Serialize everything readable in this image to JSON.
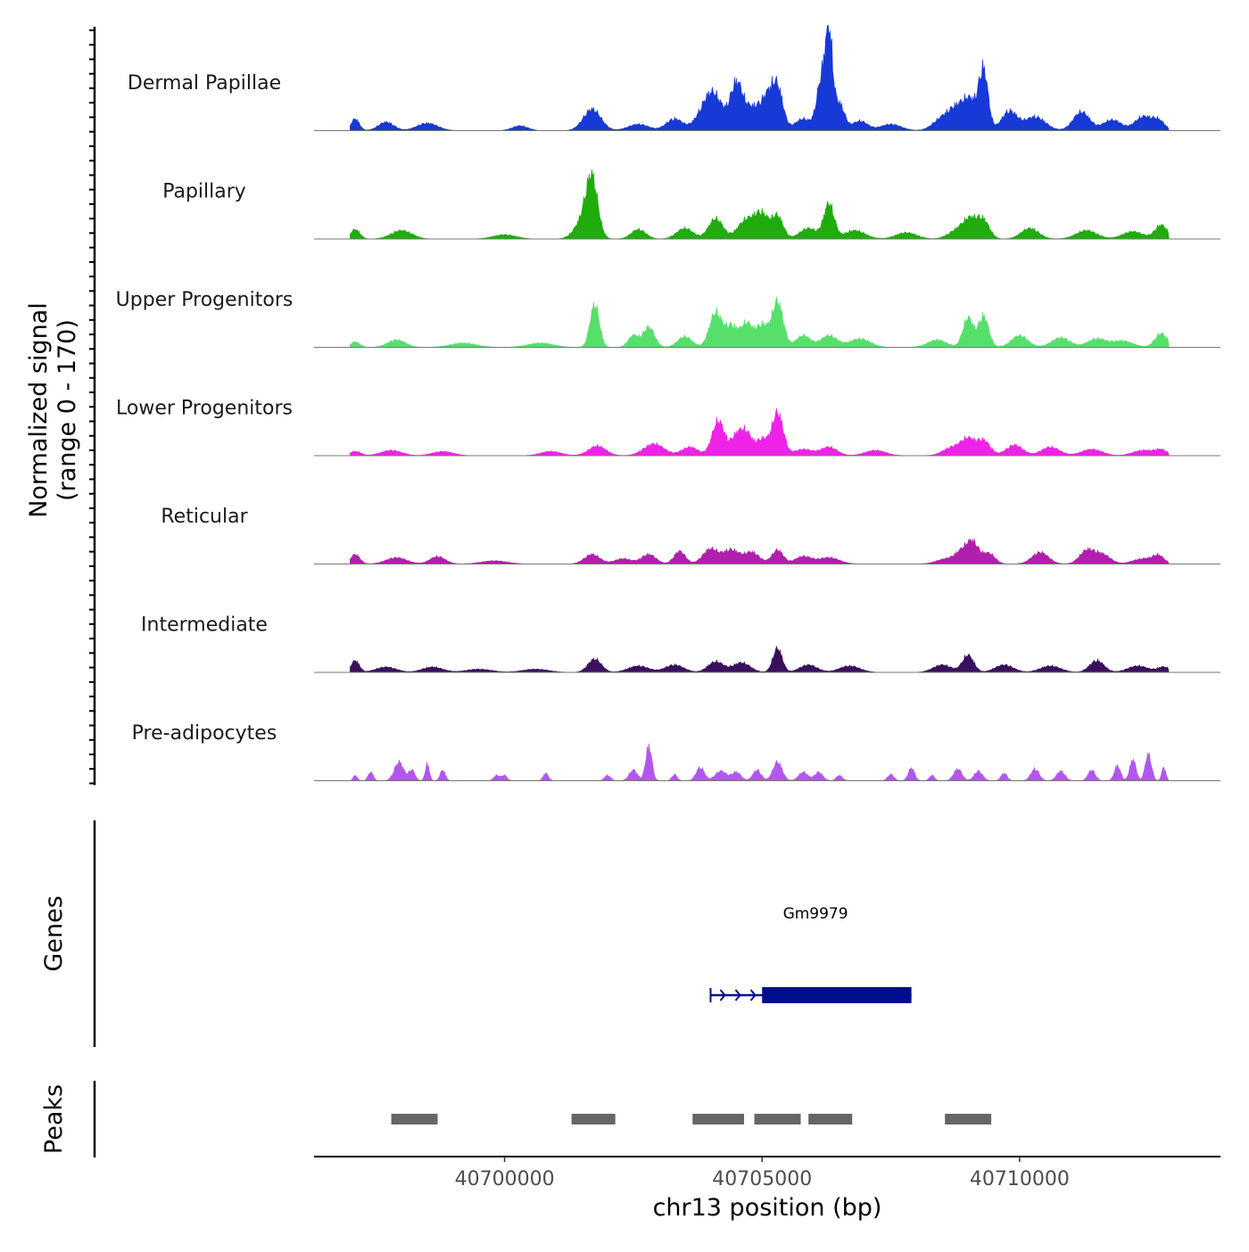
{
  "chart_data": {
    "type": "area",
    "chromosome": "chr13",
    "region_start": 40696300,
    "region_end": 40713900,
    "data_start": 40697000,
    "data_end": 40712900,
    "xlabel": "chr13 position (bp)",
    "x_ticks": [
      {
        "value": 40700000,
        "label": "40700000"
      },
      {
        "value": 40705000,
        "label": "40705000"
      },
      {
        "value": 40710000,
        "label": "40710000"
      }
    ],
    "signal_axis": {
      "title": "Normalized signal",
      "subtitle": "(range 0 - 170)",
      "ylim": [
        0,
        170
      ]
    },
    "tracks": [
      {
        "name": "Dermal Papillae",
        "color": "#1739d6",
        "peaks": [
          [
            40697100,
            22,
            80
          ],
          [
            40697700,
            16,
            150
          ],
          [
            40698500,
            14,
            200
          ],
          [
            40700300,
            9,
            150
          ],
          [
            40701700,
            40,
            170
          ],
          [
            40702600,
            12,
            200
          ],
          [
            40703300,
            22,
            160
          ],
          [
            40703900,
            38,
            180
          ],
          [
            40704100,
            48,
            160
          ],
          [
            40704500,
            85,
            120
          ],
          [
            40704800,
            40,
            150
          ],
          [
            40705100,
            55,
            130
          ],
          [
            40705300,
            72,
            110
          ],
          [
            40705800,
            22,
            160
          ],
          [
            40706150,
            90,
            90
          ],
          [
            40706300,
            170,
            70
          ],
          [
            40706500,
            50,
            100
          ],
          [
            40706900,
            18,
            150
          ],
          [
            40707500,
            12,
            200
          ],
          [
            40708500,
            22,
            180
          ],
          [
            40708800,
            38,
            160
          ],
          [
            40709050,
            48,
            130
          ],
          [
            40709300,
            110,
            90
          ],
          [
            40709800,
            36,
            150
          ],
          [
            40710300,
            26,
            200
          ],
          [
            40711200,
            35,
            160
          ],
          [
            40711800,
            20,
            180
          ],
          [
            40712400,
            26,
            160
          ],
          [
            40712700,
            18,
            120
          ]
        ]
      },
      {
        "name": "Papillary",
        "color": "#1fac0c",
        "peaks": [
          [
            40697100,
            18,
            90
          ],
          [
            40698000,
            16,
            200
          ],
          [
            40700000,
            8,
            220
          ],
          [
            40701700,
            95,
            110
          ],
          [
            40701550,
            38,
            170
          ],
          [
            40702600,
            18,
            140
          ],
          [
            40703500,
            20,
            160
          ],
          [
            40704100,
            38,
            140
          ],
          [
            40704700,
            36,
            170
          ],
          [
            40705000,
            42,
            130
          ],
          [
            40705300,
            42,
            110
          ],
          [
            40705900,
            20,
            170
          ],
          [
            40706300,
            65,
            100
          ],
          [
            40706800,
            16,
            200
          ],
          [
            40707800,
            12,
            200
          ],
          [
            40708800,
            16,
            180
          ],
          [
            40709050,
            32,
            140
          ],
          [
            40709300,
            32,
            120
          ],
          [
            40710200,
            20,
            170
          ],
          [
            40711300,
            16,
            200
          ],
          [
            40712200,
            14,
            200
          ],
          [
            40712750,
            26,
            120
          ]
        ]
      },
      {
        "name": "Upper Progenitors",
        "color": "#56e06a",
        "peaks": [
          [
            40697100,
            10,
            90
          ],
          [
            40697900,
            14,
            170
          ],
          [
            40699200,
            8,
            250
          ],
          [
            40700700,
            8,
            250
          ],
          [
            40701750,
            80,
            90
          ],
          [
            40702500,
            22,
            100
          ],
          [
            40702800,
            38,
            110
          ],
          [
            40703500,
            20,
            140
          ],
          [
            40704100,
            65,
            120
          ],
          [
            40704400,
            38,
            110
          ],
          [
            40704700,
            45,
            120
          ],
          [
            40705000,
            40,
            110
          ],
          [
            40705300,
            85,
            110
          ],
          [
            40705800,
            22,
            140
          ],
          [
            40706300,
            22,
            160
          ],
          [
            40706900,
            16,
            200
          ],
          [
            40708400,
            14,
            180
          ],
          [
            40709000,
            55,
            100
          ],
          [
            40709300,
            58,
            100
          ],
          [
            40710000,
            22,
            160
          ],
          [
            40710800,
            18,
            180
          ],
          [
            40711500,
            16,
            180
          ],
          [
            40712000,
            12,
            200
          ],
          [
            40712750,
            26,
            120
          ]
        ]
      },
      {
        "name": "Lower Progenitors",
        "color": "#ef22e7",
        "peaks": [
          [
            40697100,
            8,
            110
          ],
          [
            40697800,
            10,
            200
          ],
          [
            40698800,
            8,
            200
          ],
          [
            40700900,
            8,
            200
          ],
          [
            40701800,
            18,
            170
          ],
          [
            40702900,
            22,
            200
          ],
          [
            40703600,
            16,
            160
          ],
          [
            40704150,
            65,
            120
          ],
          [
            40704500,
            35,
            110
          ],
          [
            40704700,
            40,
            110
          ],
          [
            40705000,
            30,
            110
          ],
          [
            40705300,
            80,
            110
          ],
          [
            40705800,
            12,
            180
          ],
          [
            40706300,
            16,
            160
          ],
          [
            40707200,
            10,
            200
          ],
          [
            40708700,
            16,
            180
          ],
          [
            40709000,
            28,
            130
          ],
          [
            40709300,
            28,
            130
          ],
          [
            40709900,
            20,
            160
          ],
          [
            40710600,
            16,
            180
          ],
          [
            40711400,
            12,
            200
          ],
          [
            40712400,
            10,
            200
          ],
          [
            40712750,
            10,
            120
          ]
        ]
      },
      {
        "name": "Reticular",
        "color": "#b01fad",
        "peaks": [
          [
            40697100,
            18,
            90
          ],
          [
            40697900,
            12,
            200
          ],
          [
            40698700,
            14,
            150
          ],
          [
            40699800,
            6,
            250
          ],
          [
            40701700,
            18,
            150
          ],
          [
            40702300,
            10,
            170
          ],
          [
            40702800,
            18,
            140
          ],
          [
            40703400,
            24,
            110
          ],
          [
            40704000,
            28,
            150
          ],
          [
            40704400,
            26,
            150
          ],
          [
            40704800,
            22,
            150
          ],
          [
            40705300,
            26,
            110
          ],
          [
            40705800,
            14,
            160
          ],
          [
            40706300,
            12,
            200
          ],
          [
            40708600,
            10,
            200
          ],
          [
            40708900,
            22,
            130
          ],
          [
            40709100,
            36,
            110
          ],
          [
            40709400,
            20,
            120
          ],
          [
            40710400,
            22,
            160
          ],
          [
            40711300,
            24,
            140
          ],
          [
            40711600,
            18,
            160
          ],
          [
            40712400,
            10,
            200
          ],
          [
            40712700,
            14,
            110
          ]
        ]
      },
      {
        "name": "Intermediate",
        "color": "#3a0f5e",
        "peaks": [
          [
            40697100,
            22,
            80
          ],
          [
            40697700,
            10,
            200
          ],
          [
            40698600,
            10,
            200
          ],
          [
            40699500,
            6,
            250
          ],
          [
            40700600,
            6,
            250
          ],
          [
            40701750,
            25,
            130
          ],
          [
            40702600,
            12,
            200
          ],
          [
            40703300,
            14,
            180
          ],
          [
            40704100,
            20,
            150
          ],
          [
            40704600,
            18,
            170
          ],
          [
            40705300,
            45,
            90
          ],
          [
            40705900,
            14,
            170
          ],
          [
            40706700,
            12,
            200
          ],
          [
            40708500,
            14,
            180
          ],
          [
            40709000,
            32,
            110
          ],
          [
            40709700,
            14,
            180
          ],
          [
            40710600,
            12,
            200
          ],
          [
            40711500,
            22,
            140
          ],
          [
            40712300,
            12,
            200
          ],
          [
            40712800,
            10,
            120
          ]
        ]
      },
      {
        "name": "Pre-adipocytes",
        "color": "#b257ed",
        "peaks": [
          [
            40697100,
            10,
            40
          ],
          [
            40697400,
            16,
            50
          ],
          [
            40697950,
            35,
            90
          ],
          [
            40698200,
            20,
            60
          ],
          [
            40698500,
            32,
            40
          ],
          [
            40698800,
            20,
            50
          ],
          [
            40699850,
            10,
            60
          ],
          [
            40700000,
            10,
            50
          ],
          [
            40700800,
            14,
            50
          ],
          [
            40702000,
            10,
            60
          ],
          [
            40702500,
            20,
            80
          ],
          [
            40702800,
            65,
            60
          ],
          [
            40703300,
            12,
            50
          ],
          [
            40703800,
            25,
            80
          ],
          [
            40704200,
            18,
            110
          ],
          [
            40704500,
            16,
            90
          ],
          [
            40704900,
            20,
            80
          ],
          [
            40705300,
            35,
            90
          ],
          [
            40705800,
            16,
            90
          ],
          [
            40706100,
            16,
            80
          ],
          [
            40706500,
            10,
            60
          ],
          [
            40707500,
            12,
            60
          ],
          [
            40707900,
            24,
            60
          ],
          [
            40708300,
            10,
            50
          ],
          [
            40708800,
            22,
            80
          ],
          [
            40709200,
            18,
            80
          ],
          [
            40709700,
            14,
            60
          ],
          [
            40710300,
            22,
            80
          ],
          [
            40710800,
            18,
            80
          ],
          [
            40711400,
            20,
            70
          ],
          [
            40711900,
            28,
            60
          ],
          [
            40712200,
            40,
            60
          ],
          [
            40712500,
            50,
            60
          ],
          [
            40712800,
            25,
            40
          ]
        ]
      }
    ],
    "genes": {
      "title": "Genes",
      "color": "#000d8c",
      "items": [
        {
          "name": "Gm9979",
          "start": 40704000,
          "end": 40707900,
          "strand": "+",
          "thick_start": 40705000,
          "thick_end": 40707900
        }
      ]
    },
    "peaks_track": {
      "title": "Peaks",
      "color": "#666666",
      "regions": [
        [
          40697800,
          40698700
        ],
        [
          40701300,
          40702150
        ],
        [
          40703650,
          40704650
        ],
        [
          40704850,
          40705750
        ],
        [
          40705900,
          40706750
        ],
        [
          40708550,
          40709450
        ]
      ]
    }
  }
}
